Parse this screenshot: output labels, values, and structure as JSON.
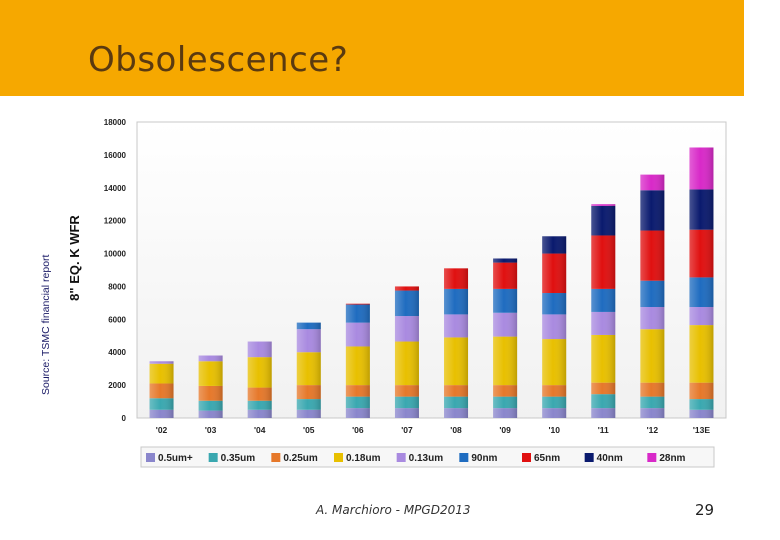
{
  "slide": {
    "title": "Obsolescence?",
    "source_note": "Source: TSMC financial report",
    "footer": "A. Marchioro - MPGD2013",
    "page_number": "29",
    "header_color": "#f6a800"
  },
  "chart_data": {
    "type": "bar",
    "stacked": true,
    "ylabel": "8\" EQ. K WFR",
    "ylim": [
      0,
      18000
    ],
    "yticks": [
      0,
      2000,
      4000,
      6000,
      8000,
      10000,
      12000,
      14000,
      16000,
      18000
    ],
    "grid": false,
    "legend_position": "bottom",
    "categories": [
      "'02",
      "'03",
      "'04",
      "'05",
      "'06",
      "'07",
      "'08",
      "'09",
      "'10",
      "'11",
      "'12",
      "'13E"
    ],
    "series": [
      {
        "name": "0.5um+",
        "color": "#8a86cc",
        "values": [
          500,
          450,
          500,
          500,
          600,
          600,
          600,
          600,
          600,
          600,
          600,
          500
        ]
      },
      {
        "name": "0.35um",
        "color": "#3aa8b0",
        "values": [
          700,
          600,
          550,
          650,
          700,
          700,
          700,
          700,
          700,
          850,
          700,
          650
        ]
      },
      {
        "name": "0.25um",
        "color": "#e6782a",
        "values": [
          900,
          900,
          800,
          850,
          700,
          700,
          700,
          700,
          700,
          700,
          850,
          1000
        ]
      },
      {
        "name": "0.18um",
        "color": "#e8c000",
        "values": [
          1200,
          1500,
          1850,
          2000,
          2350,
          2650,
          2900,
          2950,
          2800,
          2900,
          3250,
          3500
        ]
      },
      {
        "name": "0.13um",
        "color": "#a98ae0",
        "values": [
          150,
          350,
          950,
          1400,
          1450,
          1550,
          1400,
          1450,
          1500,
          1400,
          1350,
          1100
        ]
      },
      {
        "name": "90nm",
        "color": "#1f6cc0",
        "values": [
          0,
          0,
          0,
          400,
          1100,
          1550,
          1550,
          1450,
          1300,
          1400,
          1600,
          1800
        ]
      },
      {
        "name": "65nm",
        "color": "#e01010",
        "values": [
          0,
          0,
          0,
          0,
          50,
          250,
          1250,
          1600,
          2400,
          3250,
          3050,
          2900
        ]
      },
      {
        "name": "40nm",
        "color": "#0a1a6e",
        "values": [
          0,
          0,
          0,
          0,
          0,
          0,
          0,
          250,
          1050,
          1800,
          2450,
          2450
        ]
      },
      {
        "name": "28nm",
        "color": "#d829c8",
        "values": [
          0,
          0,
          0,
          0,
          0,
          0,
          0,
          0,
          0,
          100,
          950,
          2550
        ]
      }
    ]
  }
}
